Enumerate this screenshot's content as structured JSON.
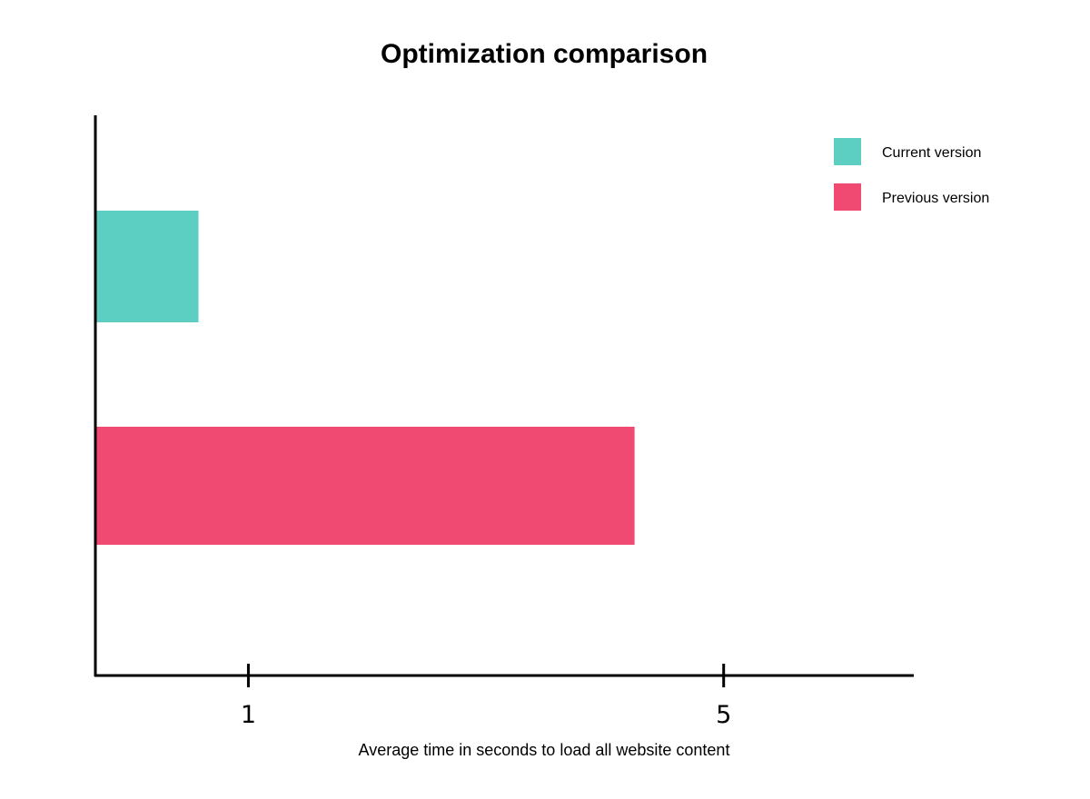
{
  "chart_data": {
    "type": "bar",
    "orientation": "horizontal",
    "title": "Optimization comparison",
    "xlabel": "Average time in seconds to load all website content",
    "ylabel": "",
    "x_ticks": [
      1,
      5
    ],
    "xlim": [
      -0.28,
      6.6
    ],
    "grid": false,
    "legend_position": "top-right",
    "series": [
      {
        "name": "Current version",
        "value": 0.58,
        "color": "#5ccfc2"
      },
      {
        "name": "Previous version",
        "value": 4.25,
        "color": "#f04a72"
      }
    ]
  }
}
